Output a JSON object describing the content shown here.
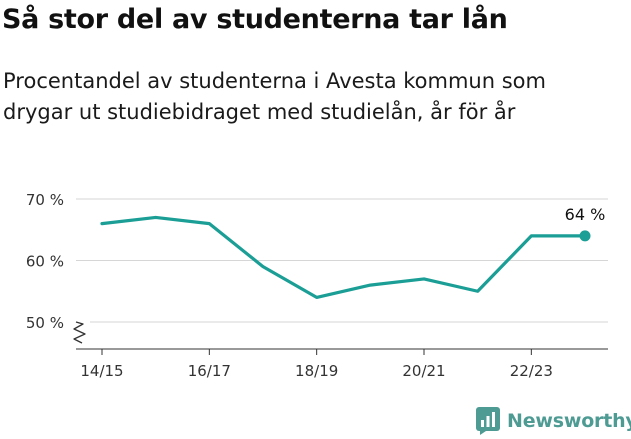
{
  "header": {
    "title": "Så stor del av studenterna tar lån",
    "subtitle": "Procentandel av studenterna i Avesta kommun som drygar ut studiebidraget med studielån, år för år"
  },
  "brand": {
    "name": "Newsworthy",
    "icon": "newsworthy-logo-icon",
    "color": "#4e9b94"
  },
  "chart_data": {
    "type": "line",
    "title": "Så stor del av studenterna tar lån",
    "subtitle": "Procentandel av studenterna i Avesta kommun som drygar ut studiebidraget med studielån, år för år",
    "xlabel": "",
    "ylabel": "",
    "x": [
      "14/15",
      "15/16",
      "16/17",
      "17/18",
      "18/19",
      "19/20",
      "20/21",
      "21/22",
      "22/23",
      "23/24"
    ],
    "x_tick_labels": [
      "14/15",
      "16/17",
      "18/19",
      "20/21",
      "22/23"
    ],
    "series": [
      {
        "values": [
          66,
          67,
          66,
          59,
          54,
          56,
          57,
          55,
          64,
          64
        ],
        "color": "#1a9e95"
      }
    ],
    "ylim": [
      50,
      70
    ],
    "y_ticks": [
      50,
      60,
      70
    ],
    "y_tick_labels": [
      "50 %",
      "60 %",
      "70 %"
    ],
    "axis_break": true,
    "grid": true,
    "end_label": "64 %"
  }
}
